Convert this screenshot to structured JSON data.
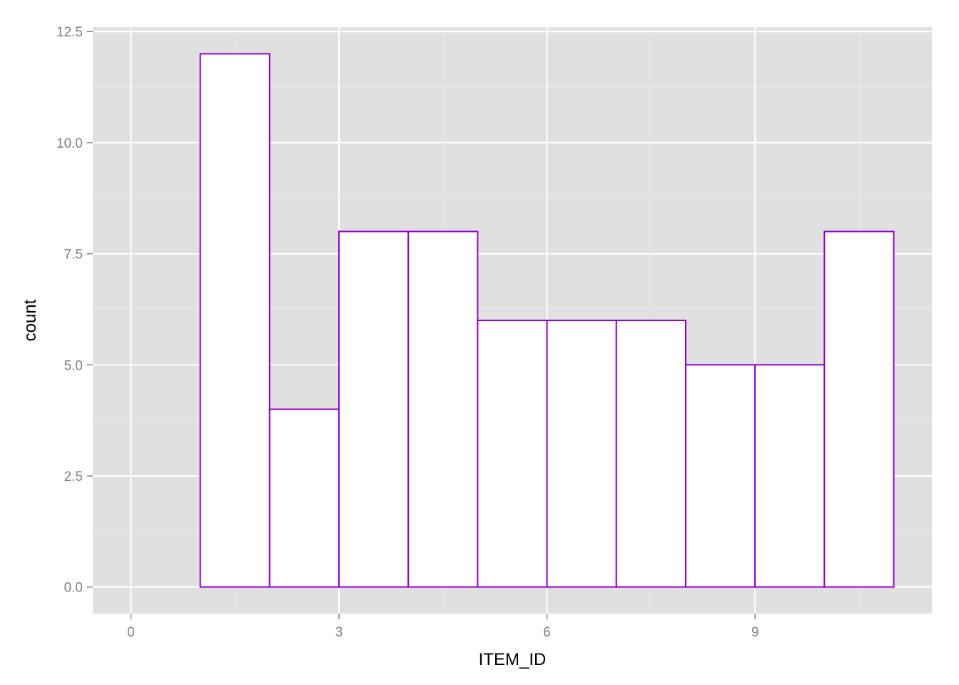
{
  "chart_data": {
    "type": "bar",
    "subtype": "histogram",
    "title": "",
    "xlabel": "ITEM_ID",
    "ylabel": "count",
    "xlim": [
      -0.55,
      11.55
    ],
    "ylim": [
      -0.6,
      12.6
    ],
    "x_ticks": [
      0,
      3,
      6,
      9
    ],
    "x_tick_labels": [
      "0",
      "3",
      "6",
      "9"
    ],
    "y_ticks": [
      0,
      2.5,
      5,
      7.5,
      10,
      12.5
    ],
    "y_tick_labels": [
      "0.0",
      "2.5",
      "5.0",
      "7.5",
      "10.0",
      "12.5"
    ],
    "bins": [
      {
        "x_start": 0,
        "x_end": 1,
        "count": 0
      },
      {
        "x_start": 1,
        "x_end": 2,
        "count": 12
      },
      {
        "x_start": 2,
        "x_end": 3,
        "count": 4
      },
      {
        "x_start": 3,
        "x_end": 4,
        "count": 8
      },
      {
        "x_start": 4,
        "x_end": 5,
        "count": 8
      },
      {
        "x_start": 5,
        "x_end": 6,
        "count": 6
      },
      {
        "x_start": 6,
        "x_end": 7,
        "count": 6
      },
      {
        "x_start": 7,
        "x_end": 8,
        "count": 6
      },
      {
        "x_start": 8,
        "x_end": 9,
        "count": 5
      },
      {
        "x_start": 9,
        "x_end": 10,
        "count": 5
      },
      {
        "x_start": 10,
        "x_end": 11,
        "count": 8
      }
    ],
    "grid": true,
    "colors": {
      "panel_background": "#e0e0e0",
      "grid_major": "#ffffff",
      "grid_minor": "#ececec",
      "bar_fill": "#ffffff",
      "bar_outline": "#9400d3",
      "tick_mark": "#7f7f7f"
    }
  }
}
